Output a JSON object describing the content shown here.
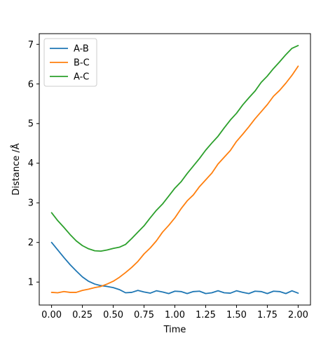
{
  "chart_data": {
    "type": "line",
    "title": "",
    "xlabel": "Time",
    "ylabel": "Distance /Å",
    "xlim": [
      -0.1,
      2.1
    ],
    "ylim": [
      0.42,
      7.27
    ],
    "xticks": [
      0.0,
      0.25,
      0.5,
      0.75,
      1.0,
      1.25,
      1.5,
      1.75,
      2.0
    ],
    "xtick_labels": [
      "0.00",
      "0.25",
      "0.50",
      "0.75",
      "1.00",
      "1.25",
      "1.50",
      "1.75",
      "2.00"
    ],
    "yticks": [
      1,
      2,
      3,
      4,
      5,
      6,
      7
    ],
    "ytick_labels": [
      "1",
      "2",
      "3",
      "4",
      "5",
      "6",
      "7"
    ],
    "grid": false,
    "legend_position": "top-left",
    "series": [
      {
        "name": "A-B",
        "color": "#1f77b4",
        "x": [
          0.0,
          0.05,
          0.1,
          0.15,
          0.2,
          0.25,
          0.3,
          0.35,
          0.4,
          0.45,
          0.5,
          0.55,
          0.6,
          0.65,
          0.7,
          0.75,
          0.8,
          0.85,
          0.9,
          0.95,
          1.0,
          1.05,
          1.1,
          1.15,
          1.2,
          1.25,
          1.3,
          1.35,
          1.4,
          1.45,
          1.5,
          1.55,
          1.6,
          1.65,
          1.7,
          1.75,
          1.8,
          1.85,
          1.9,
          1.95,
          2.0
        ],
        "y": [
          2.0,
          1.81,
          1.62,
          1.44,
          1.28,
          1.13,
          1.02,
          0.95,
          0.91,
          0.89,
          0.86,
          0.81,
          0.73,
          0.74,
          0.79,
          0.75,
          0.72,
          0.78,
          0.75,
          0.71,
          0.77,
          0.76,
          0.71,
          0.76,
          0.77,
          0.71,
          0.73,
          0.78,
          0.73,
          0.72,
          0.78,
          0.74,
          0.71,
          0.77,
          0.76,
          0.71,
          0.77,
          0.76,
          0.71,
          0.78,
          0.72
        ]
      },
      {
        "name": "B-C",
        "color": "#ff7f0e",
        "x": [
          0.0,
          0.05,
          0.1,
          0.15,
          0.2,
          0.25,
          0.3,
          0.35,
          0.4,
          0.45,
          0.5,
          0.55,
          0.6,
          0.65,
          0.7,
          0.75,
          0.8,
          0.85,
          0.9,
          0.95,
          1.0,
          1.05,
          1.1,
          1.15,
          1.2,
          1.25,
          1.3,
          1.35,
          1.4,
          1.45,
          1.5,
          1.55,
          1.6,
          1.65,
          1.7,
          1.75,
          1.8,
          1.85,
          1.9,
          1.95,
          2.0
        ],
        "y": [
          0.74,
          0.73,
          0.76,
          0.74,
          0.74,
          0.79,
          0.82,
          0.86,
          0.89,
          0.95,
          1.02,
          1.12,
          1.24,
          1.37,
          1.52,
          1.71,
          1.86,
          2.04,
          2.26,
          2.43,
          2.62,
          2.85,
          3.05,
          3.2,
          3.41,
          3.58,
          3.75,
          3.98,
          4.15,
          4.32,
          4.55,
          4.73,
          4.92,
          5.12,
          5.3,
          5.48,
          5.69,
          5.84,
          6.02,
          6.22,
          6.45
        ]
      },
      {
        "name": "A-C",
        "color": "#2ca02c",
        "x": [
          0.0,
          0.05,
          0.1,
          0.15,
          0.2,
          0.25,
          0.3,
          0.35,
          0.4,
          0.45,
          0.5,
          0.55,
          0.6,
          0.65,
          0.7,
          0.75,
          0.8,
          0.85,
          0.9,
          0.95,
          1.0,
          1.05,
          1.1,
          1.15,
          1.2,
          1.25,
          1.3,
          1.35,
          1.4,
          1.45,
          1.5,
          1.55,
          1.6,
          1.65,
          1.7,
          1.75,
          1.8,
          1.85,
          1.9,
          1.95,
          2.0
        ],
        "y": [
          2.75,
          2.55,
          2.38,
          2.2,
          2.04,
          1.92,
          1.84,
          1.79,
          1.78,
          1.81,
          1.85,
          1.88,
          1.95,
          2.1,
          2.26,
          2.42,
          2.62,
          2.81,
          2.97,
          3.17,
          3.37,
          3.53,
          3.74,
          3.93,
          4.12,
          4.33,
          4.51,
          4.68,
          4.89,
          5.09,
          5.26,
          5.47,
          5.65,
          5.82,
          6.04,
          6.2,
          6.39,
          6.56,
          6.74,
          6.9,
          6.97
        ]
      }
    ]
  }
}
